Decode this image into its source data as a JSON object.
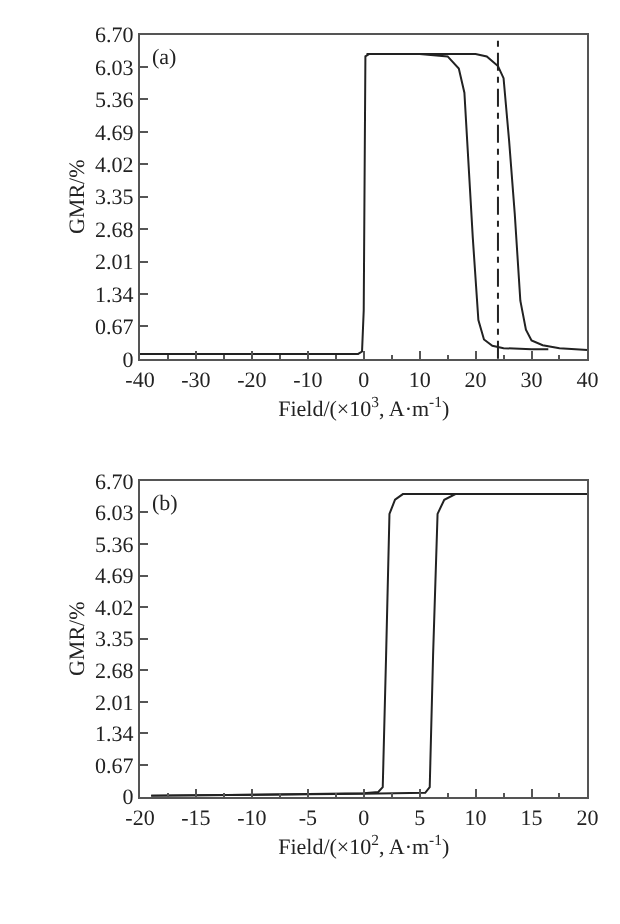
{
  "chart_data": [
    {
      "type": "line",
      "annotations": [
        "(a)"
      ],
      "xlabel": "Field/(×10$^{3}$, A·m$^{-1}$)",
      "ylabel": "GMR/%",
      "series": [
        {
          "color": "#222222",
          "x": [
            -40,
            -20,
            -5,
            -1,
            -0.3,
            0,
            0.3,
            1,
            10,
            15,
            17,
            18,
            18.5,
            19.5,
            20.5,
            21.5,
            23,
            25,
            30,
            33
          ],
          "values": [
            0.1,
            0.1,
            0.1,
            0.1,
            0.15,
            1,
            6.25,
            6.3,
            6.3,
            6.25,
            6.0,
            5.5,
            4.5,
            2.5,
            0.8,
            0.4,
            0.27,
            0.22,
            0.2,
            0.2
          ]
        },
        {
          "color": "#222222",
          "x": [
            0.5,
            20,
            22,
            24,
            25,
            26,
            27,
            28,
            29,
            30,
            32,
            35,
            40
          ],
          "values": [
            6.3,
            6.3,
            6.25,
            6.05,
            5.8,
            4.5,
            3.0,
            1.2,
            0.6,
            0.38,
            0.28,
            0.22,
            0.18
          ]
        }
      ],
      "ref_lines": [
        {
          "axis": "x",
          "value": 24,
          "line_style": "dashdot",
          "color": "#222222"
        }
      ],
      "xlim": [
        -40,
        40
      ],
      "xticks": [
        -40,
        -30,
        -20,
        -10,
        0,
        10,
        20,
        30,
        40
      ],
      "ylim": [
        0,
        6.7
      ],
      "yticks": [
        0,
        0.67,
        1.34,
        2.01,
        2.68,
        3.35,
        4.02,
        4.69,
        5.36,
        6.03,
        {
          "value": 6.7,
          "label": "6.70"
        }
      ],
      "marker": "none",
      "line_style": "solid"
    },
    {
      "type": "line",
      "annotations": [
        "(b)"
      ],
      "xlabel": "Field/(×10$^{2}$, A·m$^{-1}$)",
      "ylabel": "GMR/%",
      "series": [
        {
          "color": "#222222",
          "x": [
            -19,
            -10,
            0,
            1.3,
            1.7,
            2.0,
            2.3,
            2.8,
            3.5,
            20
          ],
          "values": [
            0.02,
            0.04,
            0.07,
            0.1,
            0.2,
            3,
            6.0,
            6.3,
            6.42,
            6.42
          ]
        },
        {
          "color": "#222222",
          "x": [
            -19,
            0,
            5.5,
            5.9,
            6.2,
            6.6,
            7.2,
            8.2,
            20
          ],
          "values": [
            0.02,
            0.06,
            0.08,
            0.2,
            3,
            6.0,
            6.3,
            6.42,
            6.42
          ]
        }
      ],
      "xlim": [
        -20,
        20
      ],
      "xticks": [
        -20,
        -15,
        -10,
        -5,
        0,
        5,
        10,
        15,
        20
      ],
      "ylim": [
        0,
        6.7
      ],
      "yticks": [
        0,
        0.67,
        1.34,
        2.01,
        2.68,
        3.35,
        4.02,
        4.69,
        5.36,
        6.03,
        {
          "value": 6.7,
          "label": "6.70"
        }
      ],
      "marker": "none",
      "line_style": "solid"
    }
  ]
}
